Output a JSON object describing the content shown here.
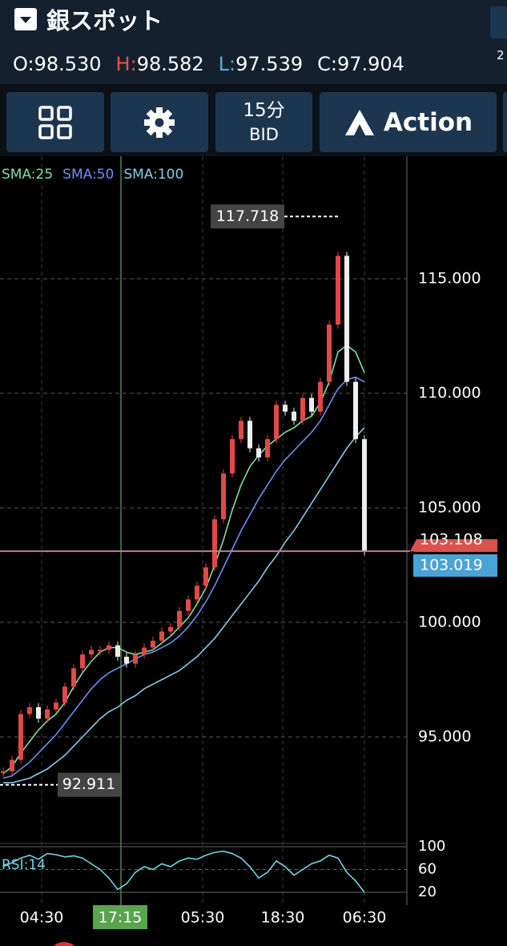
{
  "header": {
    "title": "銀スポット",
    "edge_text": "2",
    "ohlc": [
      {
        "label": "O:",
        "value": "98.530"
      },
      {
        "label": "H:",
        "value": "98.582"
      },
      {
        "label": "L:",
        "value": "97.539"
      },
      {
        "label": "C:",
        "value": "97.904"
      }
    ]
  },
  "toolbar": {
    "interval": "15分",
    "side": "BID",
    "action": "Action"
  },
  "chart": {
    "type": "candlestick",
    "indicators": [
      {
        "name": "SMA:25",
        "color": "#7fe0a4"
      },
      {
        "name": "SMA:50",
        "color": "#6f8ef0"
      },
      {
        "name": "SMA:100",
        "color": "#86cbe8"
      }
    ],
    "yticks": [
      {
        "value": 95,
        "label": "95.000"
      },
      {
        "value": 100,
        "label": "100.000"
      },
      {
        "value": 105,
        "label": "105.000"
      },
      {
        "value": 110,
        "label": "110.000"
      },
      {
        "value": 115,
        "label": "115.000"
      }
    ],
    "high": {
      "value": 117.718,
      "label": "117.718"
    },
    "low": {
      "value": 92.911,
      "label": "92.911"
    },
    "ask": {
      "value": 103.108,
      "label": "103.108",
      "color": "#d9534f"
    },
    "bid": {
      "value": 103.019,
      "label": "103.019",
      "color": "#4aa3d6"
    },
    "time_labels": [
      "04:30",
      "17:15",
      "05:30",
      "18:30",
      "06:30"
    ],
    "closes": [
      93.5,
      94,
      96,
      96.3,
      95.8,
      96.2,
      96.5,
      97.2,
      98,
      98.6,
      98.8,
      98.8,
      99,
      98.5,
      98.2,
      98.6,
      98.9,
      99.2,
      99.6,
      99.8,
      100.5,
      101,
      101.6,
      102.4,
      104.5,
      106.5,
      108,
      108.8,
      107.6,
      107.2,
      108,
      109.5,
      109.2,
      108.8,
      109.8,
      109.2,
      110.5,
      113,
      116,
      110.5,
      108,
      103.1
    ],
    "sma": [
      [
        93.4,
        93.7,
        94.3,
        94.8,
        95.3,
        95.7,
        96.0,
        96.5,
        97.2,
        97.8,
        98.3,
        98.7,
        98.9,
        98.9,
        98.7,
        98.6,
        98.7,
        98.8,
        99.1,
        99.4,
        99.8,
        100.2,
        100.8,
        101.5,
        102.5,
        103.6,
        104.9,
        106.0,
        106.8,
        107.3,
        107.7,
        108.0,
        108.3,
        108.5,
        108.8,
        109.0,
        109.6,
        110.5,
        111.8,
        112.1,
        111.8,
        110.9
      ],
      [
        93.2,
        93.3,
        93.6,
        93.9,
        94.3,
        94.7,
        95.1,
        95.6,
        96.1,
        96.6,
        97.1,
        97.5,
        97.8,
        98.0,
        98.2,
        98.4,
        98.6,
        98.7,
        98.9,
        99.1,
        99.4,
        99.8,
        100.3,
        100.9,
        101.6,
        102.4,
        103.2,
        104.0,
        104.7,
        105.4,
        106.0,
        106.6,
        107.1,
        107.5,
        107.9,
        108.3,
        108.8,
        109.5,
        110.2,
        110.6,
        110.7,
        110.5
      ],
      [
        93.0,
        93.0,
        93.1,
        93.2,
        93.4,
        93.6,
        93.9,
        94.2,
        94.6,
        95.0,
        95.4,
        95.8,
        96.1,
        96.3,
        96.6,
        96.8,
        97.1,
        97.3,
        97.5,
        97.7,
        97.9,
        98.2,
        98.5,
        98.9,
        99.3,
        99.8,
        100.3,
        100.8,
        101.3,
        101.8,
        102.4,
        102.9,
        103.5,
        104.0,
        104.6,
        105.2,
        105.8,
        106.4,
        107.0,
        107.6,
        108.1,
        108.5
      ]
    ],
    "rsi": {
      "name": "RSI:14",
      "color": "#6fd6e8",
      "yticks": [
        20,
        60,
        100
      ],
      "values": [
        65,
        72,
        80,
        85,
        78,
        88,
        86,
        82,
        84,
        80,
        70,
        60,
        45,
        25,
        35,
        55,
        65,
        60,
        70,
        65,
        75,
        80,
        78,
        85,
        90,
        92,
        88,
        80,
        65,
        45,
        55,
        75,
        65,
        50,
        60,
        70,
        75,
        85,
        80,
        55,
        40,
        20
      ]
    }
  }
}
